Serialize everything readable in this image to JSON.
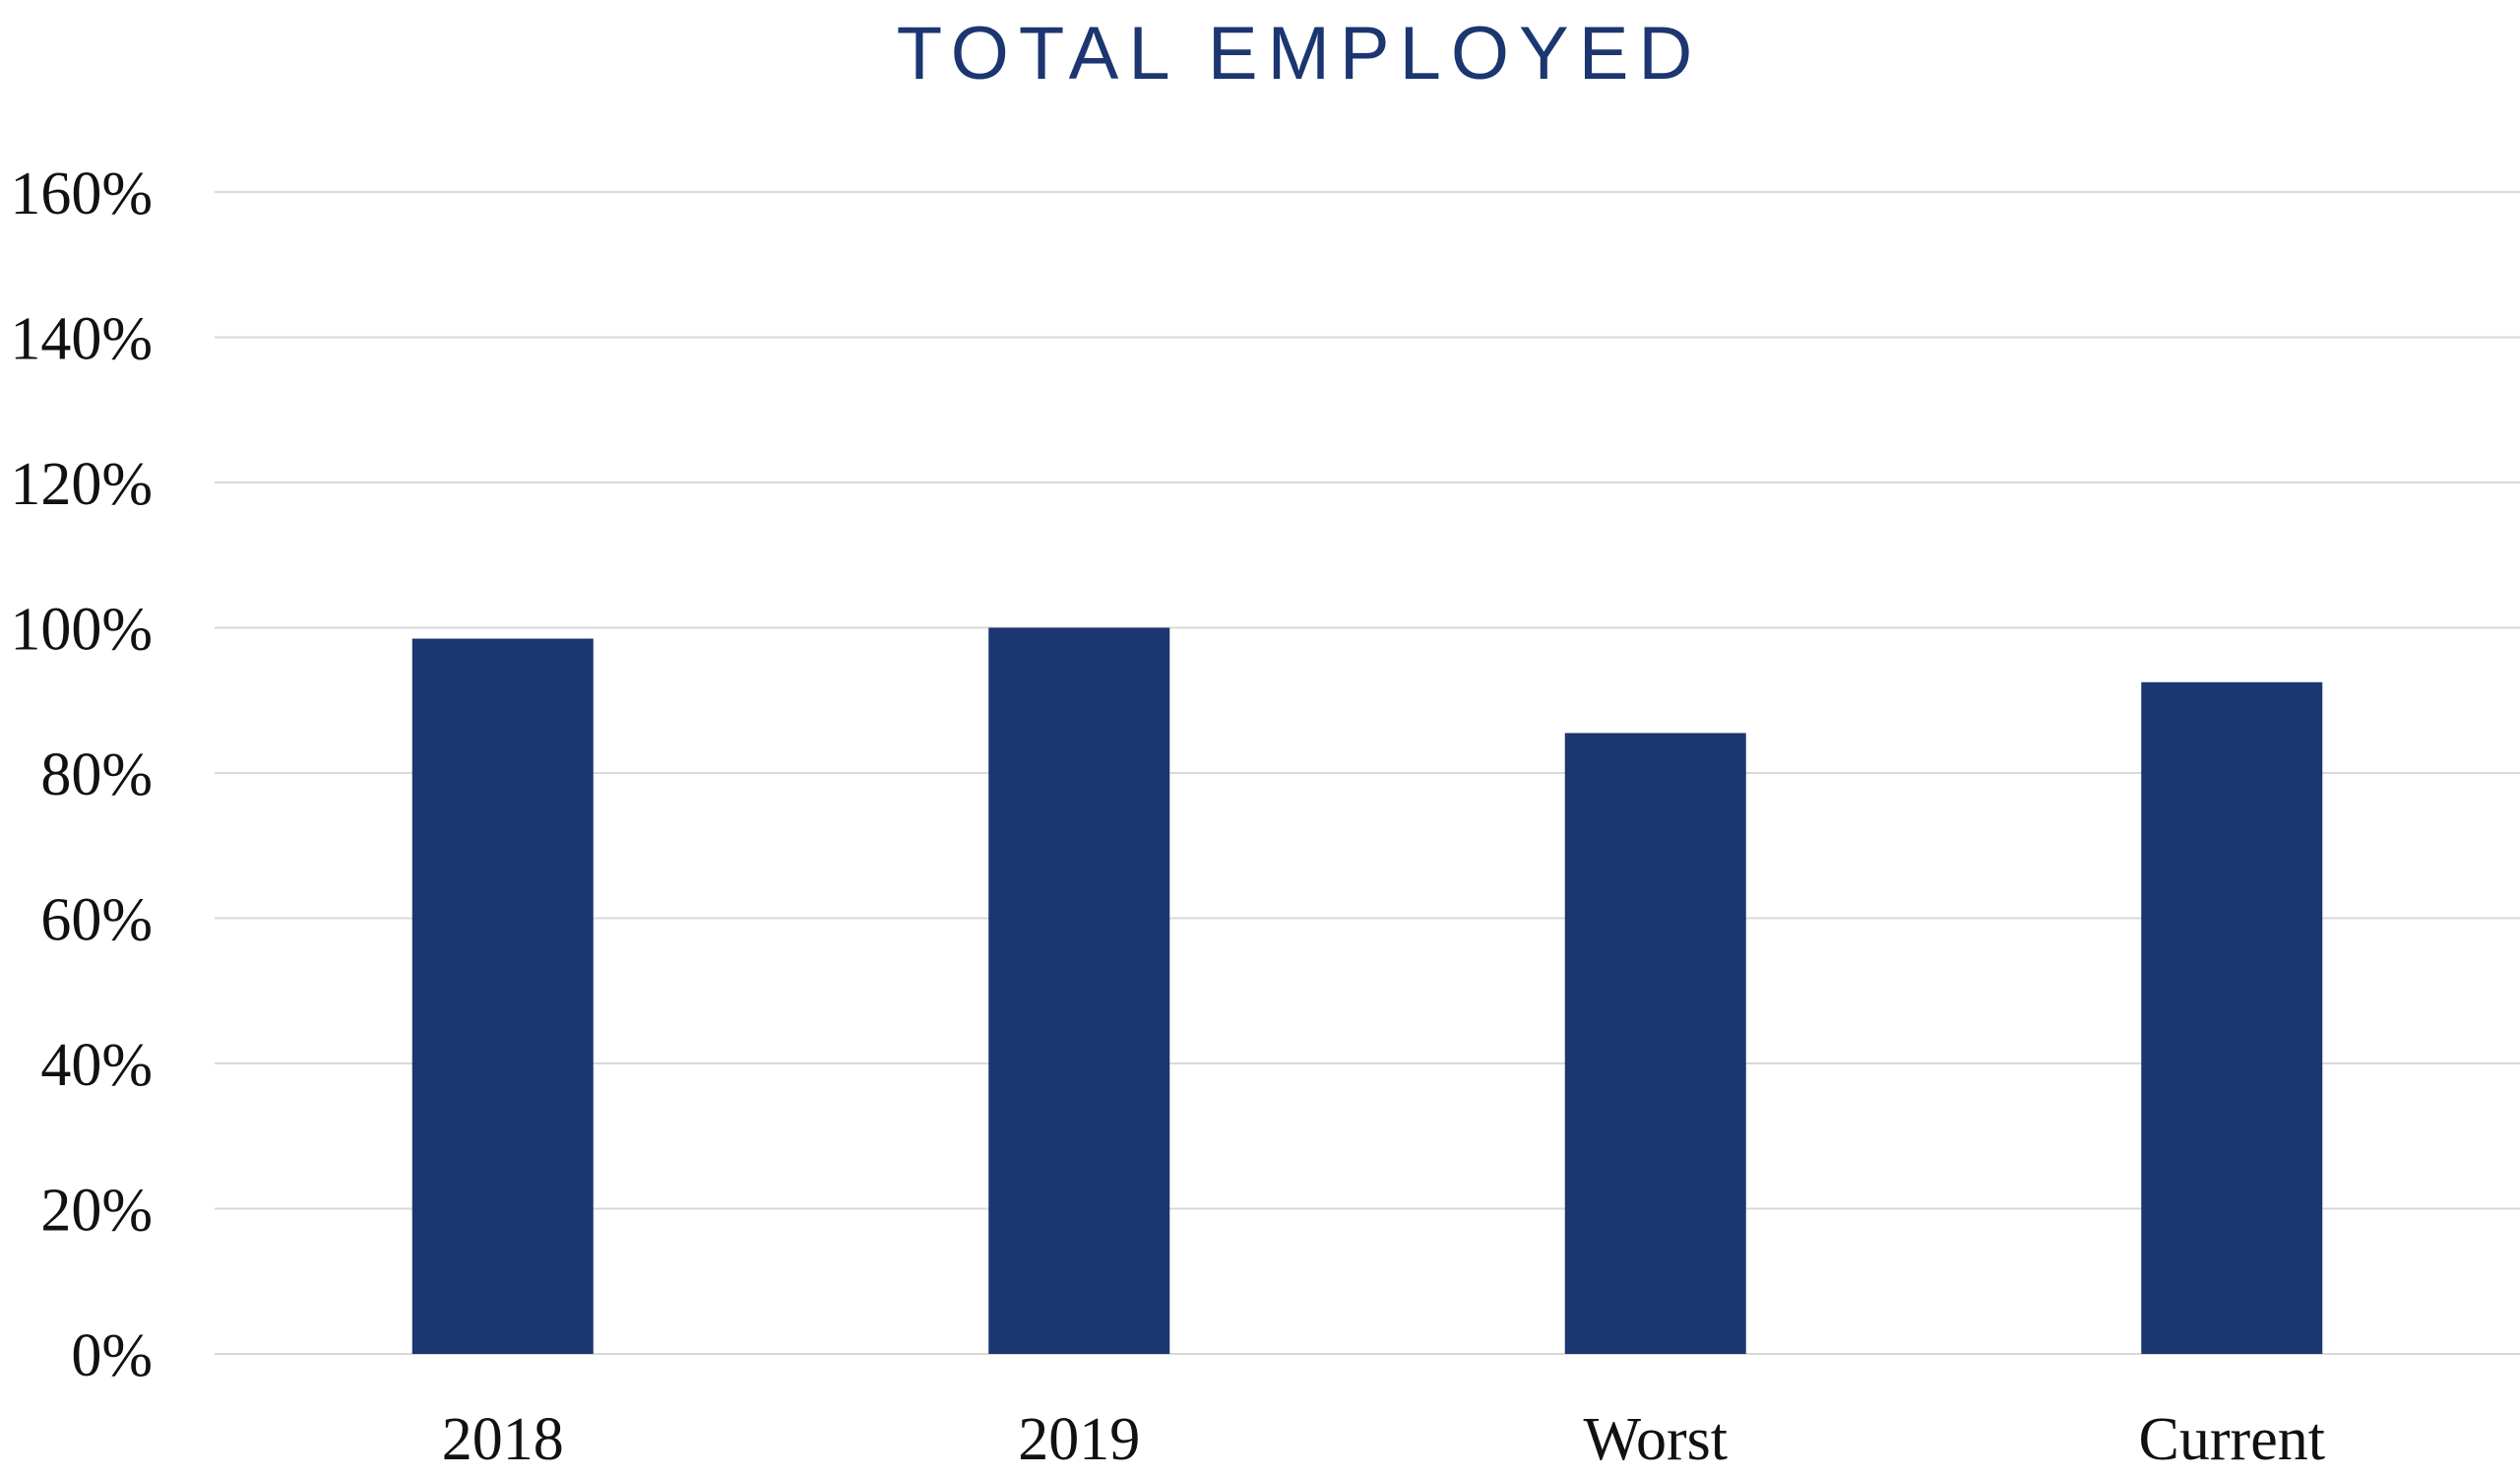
{
  "chart_data": {
    "type": "bar",
    "title": "TOTAL EMPLOYED",
    "categories": [
      "2018",
      "2019",
      "Worst",
      "Current"
    ],
    "series": [
      {
        "values": [
          98.5,
          100,
          85.5,
          92.5
        ]
      }
    ],
    "ylim": [
      0,
      160
    ],
    "y_ticks": [
      0,
      20,
      40,
      60,
      80,
      100,
      120,
      140,
      160
    ],
    "y_tick_labels": [
      "0%",
      "20%",
      "40%",
      "60%",
      "80%",
      "100%",
      "120%",
      "140%",
      "160%"
    ],
    "xlabel": "",
    "ylabel": "",
    "grid": true,
    "legend": "none",
    "colors": {
      "bar": "#1b3670",
      "title": "#1b3670",
      "grid": "#d9d9d9",
      "text": "#111111"
    }
  }
}
